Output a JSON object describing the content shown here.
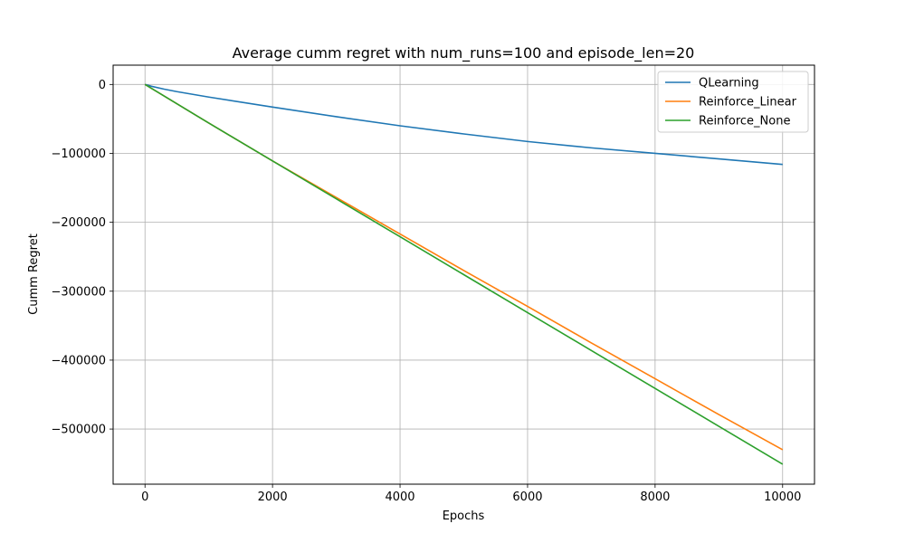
{
  "chart_data": {
    "type": "line",
    "title": "Average cumm regret with num_runs=100 and episode_len=20",
    "xlabel": "Epochs",
    "ylabel": "Cumm Regret",
    "xlim": [
      -500,
      10500
    ],
    "ylim": [
      -580000,
      28000
    ],
    "xticks": [
      0,
      2000,
      4000,
      6000,
      8000,
      10000
    ],
    "xtick_labels": [
      "0",
      "2000",
      "4000",
      "6000",
      "8000",
      "10000"
    ],
    "yticks": [
      0,
      -100000,
      -200000,
      -300000,
      -400000,
      -500000
    ],
    "ytick_labels": [
      "0",
      "−100000",
      "−200000",
      "−300000",
      "−400000",
      "−500000"
    ],
    "grid": true,
    "legend_position": "top-right",
    "series": [
      {
        "name": "QLearning",
        "color": "#1f77b4",
        "x": [
          0,
          100,
          300,
          500,
          1000,
          2000,
          3000,
          4000,
          5000,
          6000,
          7000,
          8000,
          9000,
          10000
        ],
        "y": [
          0,
          -2600,
          -6800,
          -10400,
          -18300,
          -32800,
          -46800,
          -60000,
          -71800,
          -82800,
          -92000,
          -100000,
          -108000,
          -116000
        ]
      },
      {
        "name": "Reinforce_Linear",
        "color": "#ff7f0e",
        "x": [
          0,
          1000,
          2000,
          3000,
          4000,
          5000,
          6000,
          7000,
          8000,
          9000,
          10000
        ],
        "y": [
          0,
          -56000,
          -111000,
          -164000,
          -217000,
          -270000,
          -322000,
          -375000,
          -427000,
          -479000,
          -530000
        ]
      },
      {
        "name": "Reinforce_None",
        "color": "#2ca02c",
        "x": [
          0,
          1000,
          2000,
          3000,
          4000,
          5000,
          6000,
          7000,
          8000,
          9000,
          10000
        ],
        "y": [
          0,
          -56000,
          -111000,
          -166000,
          -221000,
          -276000,
          -331000,
          -386000,
          -441000,
          -496000,
          -551000
        ]
      }
    ]
  }
}
